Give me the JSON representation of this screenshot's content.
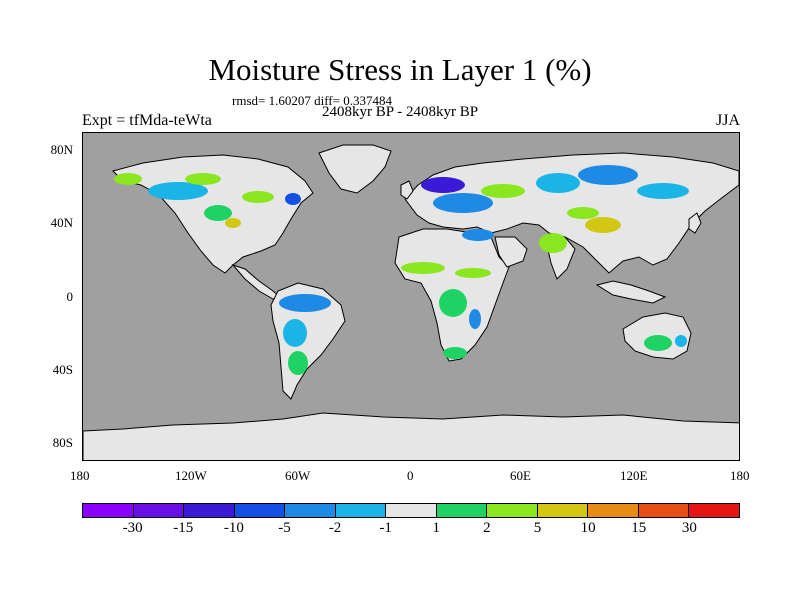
{
  "title": "Moisture Stress in Layer 1 (%)",
  "stats": "rmsd= 1.60207 diff= 0.337484",
  "period": "2408kyr BP - 2408kyr BP",
  "experiment": "Expt = tfMda-teWta",
  "season": "JJA",
  "lat_ticks": [
    "80N",
    "40N",
    "0",
    "40S",
    "80S"
  ],
  "lon_ticks": [
    "180",
    "120W",
    "60W",
    "0",
    "60E",
    "120E",
    "180"
  ],
  "colors": {
    "ocean": "#a0a0a0",
    "land_neutral": "#e6e6e6",
    "coastline": "#000000"
  },
  "colorbar": {
    "colors": [
      "#8a00ff",
      "#6a10e6",
      "#3a1ad6",
      "#1450e6",
      "#1e8ae6",
      "#1ab4e6",
      "#e6e6e6",
      "#1ed264",
      "#8ae61e",
      "#d2c814",
      "#e68c14",
      "#e65014",
      "#e61414"
    ],
    "labels": [
      "-30",
      "-15",
      "-10",
      "-5",
      "-2",
      "-1",
      "1",
      "2",
      "5",
      "10",
      "15",
      "30"
    ]
  }
}
